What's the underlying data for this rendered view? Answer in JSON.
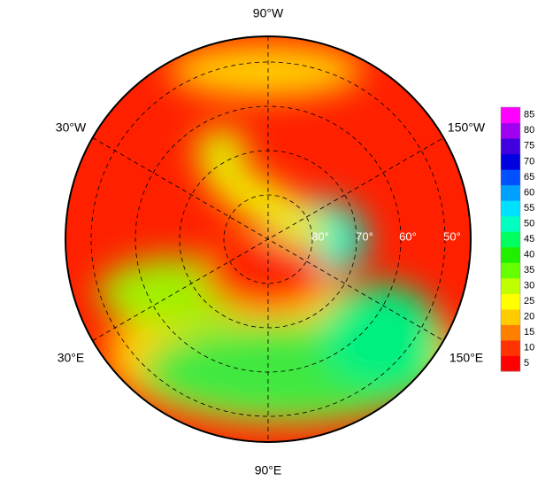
{
  "longitude_labels": [
    "90°W",
    "30°W",
    "150°W",
    "30°E",
    "150°E",
    "90°E"
  ],
  "latitude_labels": [
    "80°",
    "70°",
    "60°",
    "50°"
  ],
  "colorbar": {
    "ticks": [
      5,
      10,
      15,
      20,
      25,
      30,
      35,
      40,
      45,
      50,
      55,
      60,
      65,
      70,
      75,
      80,
      85
    ],
    "colors": [
      "#ff0000",
      "#ff3300",
      "#ff8000",
      "#ffcc00",
      "#ffff00",
      "#bfff00",
      "#66ff00",
      "#20f000",
      "#00ff60",
      "#00ffc0",
      "#00e0ff",
      "#00a0ff",
      "#0050ff",
      "#0000e0",
      "#4000e0",
      "#a000f0",
      "#ff00ff"
    ]
  }
}
